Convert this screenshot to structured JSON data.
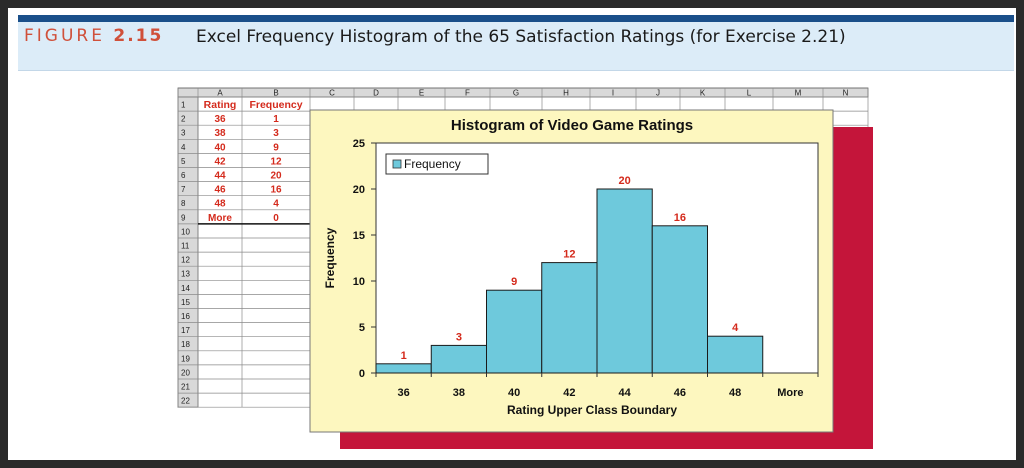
{
  "figure": {
    "label": "FIGURE",
    "number": "2.15",
    "title": "Excel Frequency Histogram of the 65 Satisfaction Ratings (for Exercise 2.21)"
  },
  "sheet": {
    "columns": [
      "A",
      "B",
      "C",
      "D",
      "E",
      "F",
      "G",
      "H",
      "I",
      "J",
      "K",
      "L",
      "M",
      "N"
    ],
    "rows": [
      "1",
      "2",
      "3",
      "4",
      "5",
      "6",
      "7",
      "8",
      "9",
      "10",
      "11",
      "12",
      "13",
      "14",
      "15",
      "16",
      "17",
      "18",
      "19",
      "20",
      "21",
      "22"
    ],
    "table_header": [
      "Rating",
      "Frequency"
    ],
    "table_rows": [
      [
        "36",
        "1"
      ],
      [
        "38",
        "3"
      ],
      [
        "40",
        "9"
      ],
      [
        "42",
        "12"
      ],
      [
        "44",
        "20"
      ],
      [
        "46",
        "16"
      ],
      [
        "48",
        "4"
      ],
      [
        "More",
        "0"
      ]
    ]
  },
  "chart_data": {
    "type": "bar",
    "title": "Histogram of Video Game Ratings",
    "xlabel": "Rating Upper Class Boundary",
    "ylabel": "Frequency",
    "categories": [
      "36",
      "38",
      "40",
      "42",
      "44",
      "46",
      "48",
      "More"
    ],
    "series": [
      {
        "name": "Frequency",
        "values": [
          1,
          3,
          9,
          12,
          20,
          16,
          4,
          0
        ]
      }
    ],
    "data_labels": [
      "1",
      "3",
      "9",
      "12",
      "20",
      "16",
      "4",
      ""
    ],
    "ylim": [
      0,
      25
    ],
    "yticks": [
      0,
      5,
      10,
      15,
      20,
      25
    ],
    "grid": false,
    "legend": "top-left",
    "colors": {
      "bar": "#6ec9dc",
      "label": "#d42a1c",
      "chart_area": "#fdf7bf",
      "shadow": "#c4153a"
    }
  }
}
